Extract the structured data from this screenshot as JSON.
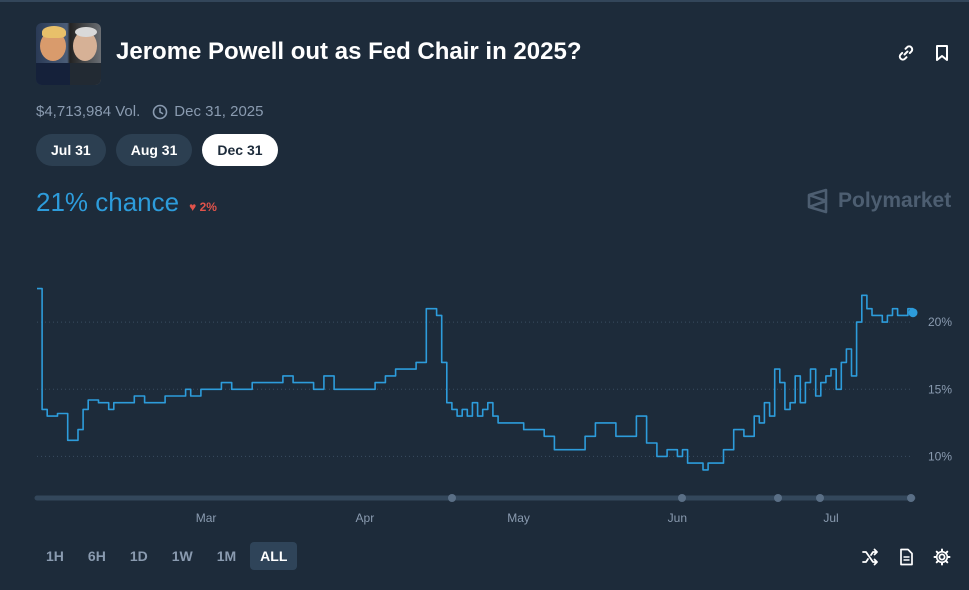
{
  "header": {
    "title": "Jerome Powell out as Fed Chair in 2025?",
    "volume": "$4,713,984 Vol.",
    "end_date": "Dec 31, 2025",
    "link_icon": "link-icon",
    "bookmark_icon": "bookmark-icon",
    "clock_icon": "clock-icon"
  },
  "date_tabs": [
    {
      "label": "Jul 31",
      "active": false
    },
    {
      "label": "Aug 31",
      "active": false
    },
    {
      "label": "Dec 31",
      "active": true
    }
  ],
  "chance": {
    "value": "21% chance",
    "delta": "2%",
    "delta_icon": "down-triangle-icon"
  },
  "brand": {
    "label": "Polymarket",
    "icon": "polymarket-logo-icon"
  },
  "time_ranges": [
    {
      "label": "1H",
      "active": false
    },
    {
      "label": "6H",
      "active": false
    },
    {
      "label": "1D",
      "active": false
    },
    {
      "label": "1W",
      "active": false
    },
    {
      "label": "1M",
      "active": false
    },
    {
      "label": "ALL",
      "active": true
    }
  ],
  "footer_icons": [
    "shuffle-icon",
    "document-icon",
    "settings-icon"
  ],
  "colors": {
    "background": "#1d2b3a",
    "line": "#2d9cdb",
    "delta_down": "#e0534b",
    "muted": "#8a9bb0"
  },
  "chart_data": {
    "type": "line",
    "title": "",
    "xlabel": "",
    "ylabel": "",
    "x_tick_labels": [
      "Mar",
      "Apr",
      "May",
      "Jun",
      "Jul"
    ],
    "x_tick_dates": [
      "2025-03-01",
      "2025-04-01",
      "2025-05-01",
      "2025-06-01",
      "2025-07-01"
    ],
    "xlim": [
      "2025-01-27",
      "2025-07-17"
    ],
    "y_ticks": [
      10,
      15,
      20
    ],
    "y_tick_labels": [
      "10%",
      "15%",
      "20%"
    ],
    "ylim": [
      7.5,
      25
    ],
    "grid": "horizontal dotted",
    "series": [
      {
        "x": [
          "2025-01-27",
          "2025-01-28",
          "2025-01-29",
          "2025-01-31",
          "2025-02-02",
          "2025-02-04",
          "2025-02-05",
          "2025-02-06",
          "2025-02-08",
          "2025-02-10",
          "2025-02-11",
          "2025-02-13",
          "2025-02-15",
          "2025-02-17",
          "2025-02-19",
          "2025-02-21",
          "2025-02-23",
          "2025-02-25",
          "2025-02-26",
          "2025-02-28",
          "2025-03-02",
          "2025-03-04",
          "2025-03-06",
          "2025-03-08",
          "2025-03-10",
          "2025-03-12",
          "2025-03-14",
          "2025-03-16",
          "2025-03-18",
          "2025-03-20",
          "2025-03-22",
          "2025-03-24",
          "2025-03-26",
          "2025-03-28",
          "2025-03-30",
          "2025-04-01",
          "2025-04-03",
          "2025-04-05",
          "2025-04-07",
          "2025-04-09",
          "2025-04-11",
          "2025-04-13",
          "2025-04-15",
          "2025-04-16",
          "2025-04-17",
          "2025-04-18",
          "2025-04-19",
          "2025-04-20",
          "2025-04-21",
          "2025-04-22",
          "2025-04-23",
          "2025-04-24",
          "2025-04-25",
          "2025-04-26",
          "2025-04-27",
          "2025-04-28",
          "2025-04-30",
          "2025-05-02",
          "2025-05-04",
          "2025-05-06",
          "2025-05-08",
          "2025-05-10",
          "2025-05-12",
          "2025-05-14",
          "2025-05-16",
          "2025-05-18",
          "2025-05-20",
          "2025-05-22",
          "2025-05-24",
          "2025-05-26",
          "2025-05-28",
          "2025-05-30",
          "2025-06-01",
          "2025-06-02",
          "2025-06-03",
          "2025-06-04",
          "2025-06-05",
          "2025-06-06",
          "2025-06-07",
          "2025-06-08",
          "2025-06-10",
          "2025-06-12",
          "2025-06-14",
          "2025-06-16",
          "2025-06-17",
          "2025-06-18",
          "2025-06-19",
          "2025-06-20",
          "2025-06-21",
          "2025-06-22",
          "2025-06-23",
          "2025-06-24",
          "2025-06-25",
          "2025-06-26",
          "2025-06-27",
          "2025-06-28",
          "2025-06-29",
          "2025-06-30",
          "2025-07-01",
          "2025-07-02",
          "2025-07-03",
          "2025-07-04",
          "2025-07-05",
          "2025-07-06",
          "2025-07-07",
          "2025-07-08",
          "2025-07-09",
          "2025-07-10",
          "2025-07-11",
          "2025-07-12",
          "2025-07-13",
          "2025-07-14",
          "2025-07-15",
          "2025-07-16",
          "2025-07-17"
        ],
        "values": [
          22.5,
          13.5,
          13.0,
          13.2,
          11.2,
          12.0,
          13.5,
          14.2,
          14.0,
          13.5,
          14.0,
          14.0,
          14.5,
          14.0,
          14.0,
          14.5,
          14.5,
          15.0,
          14.5,
          15.0,
          15.0,
          15.5,
          15.0,
          15.0,
          15.5,
          15.5,
          15.5,
          16.0,
          15.5,
          15.5,
          15.0,
          16.0,
          15.0,
          15.0,
          15.0,
          15.0,
          15.5,
          16.0,
          16.5,
          16.5,
          17.0,
          21.0,
          20.5,
          17.0,
          14.0,
          13.5,
          13.0,
          13.5,
          13.0,
          14.0,
          13.0,
          13.5,
          14.0,
          13.0,
          12.5,
          12.5,
          12.5,
          12.0,
          12.0,
          11.5,
          10.5,
          10.5,
          10.5,
          11.5,
          12.5,
          12.5,
          11.5,
          11.5,
          13.0,
          11.0,
          10.0,
          10.5,
          10.0,
          10.5,
          9.5,
          9.5,
          9.5,
          9.0,
          9.5,
          9.5,
          10.5,
          12.0,
          11.5,
          13.0,
          12.5,
          14.0,
          13.0,
          16.5,
          15.5,
          13.5,
          14.0,
          16.0,
          14.0,
          15.5,
          16.5,
          14.5,
          15.5,
          16.0,
          16.5,
          15.0,
          17.0,
          18.0,
          16.0,
          20.0,
          22.0,
          21.0,
          20.5,
          20.5,
          20.0,
          20.5,
          21.0,
          20.5,
          20.5,
          21.0,
          20.7
        ]
      }
    ]
  }
}
